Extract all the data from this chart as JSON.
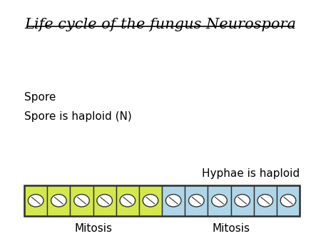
{
  "title": "Life cycle of the fungus Neurospora",
  "bg_color": "#ffffff",
  "text_spore": "Spore",
  "text_spore_haploid": "Spore is haploid (N)",
  "text_hyphae": "Hyphae is haploid",
  "mitosis_label": "Mitosis",
  "num_yellow_cells": 6,
  "num_blue_cells": 6,
  "cell_color_yellow": "#d4e84a",
  "cell_color_blue": "#aed6e8",
  "cell_border_color": "#333333",
  "bar_border_color": "#333333",
  "title_fontsize": 15,
  "label_fontsize": 11
}
